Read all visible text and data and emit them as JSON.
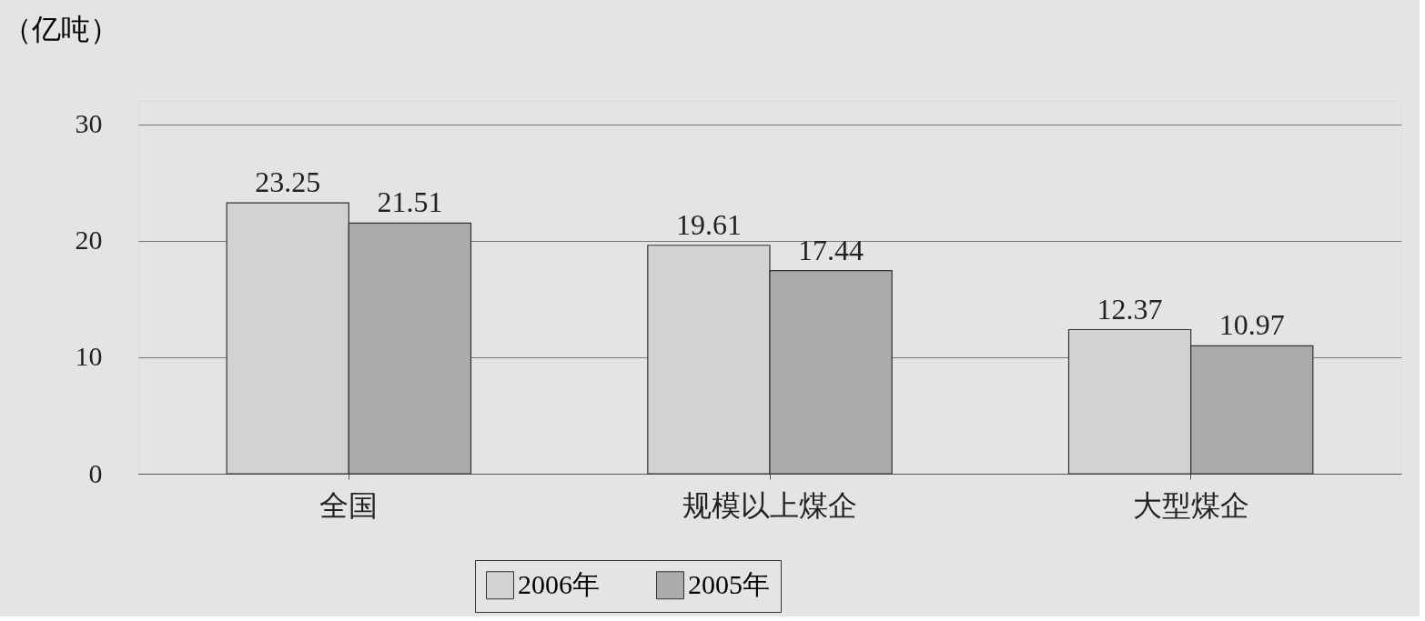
{
  "chart_data": {
    "type": "bar",
    "ylabel": "（亿吨）",
    "categories": [
      "全国",
      "规模以上煤企",
      "大型煤企"
    ],
    "series": [
      {
        "name": "2006年",
        "color": "#d2d2d2",
        "values": [
          23.25,
          19.61,
          12.37
        ]
      },
      {
        "name": "2005年",
        "color": "#ababab",
        "values": [
          21.51,
          17.44,
          10.97
        ]
      }
    ],
    "ylim": [
      0,
      32
    ],
    "yticks": [
      0,
      10,
      20,
      30
    ],
    "grid": "y",
    "legend": "bottom",
    "data_labels": true
  }
}
